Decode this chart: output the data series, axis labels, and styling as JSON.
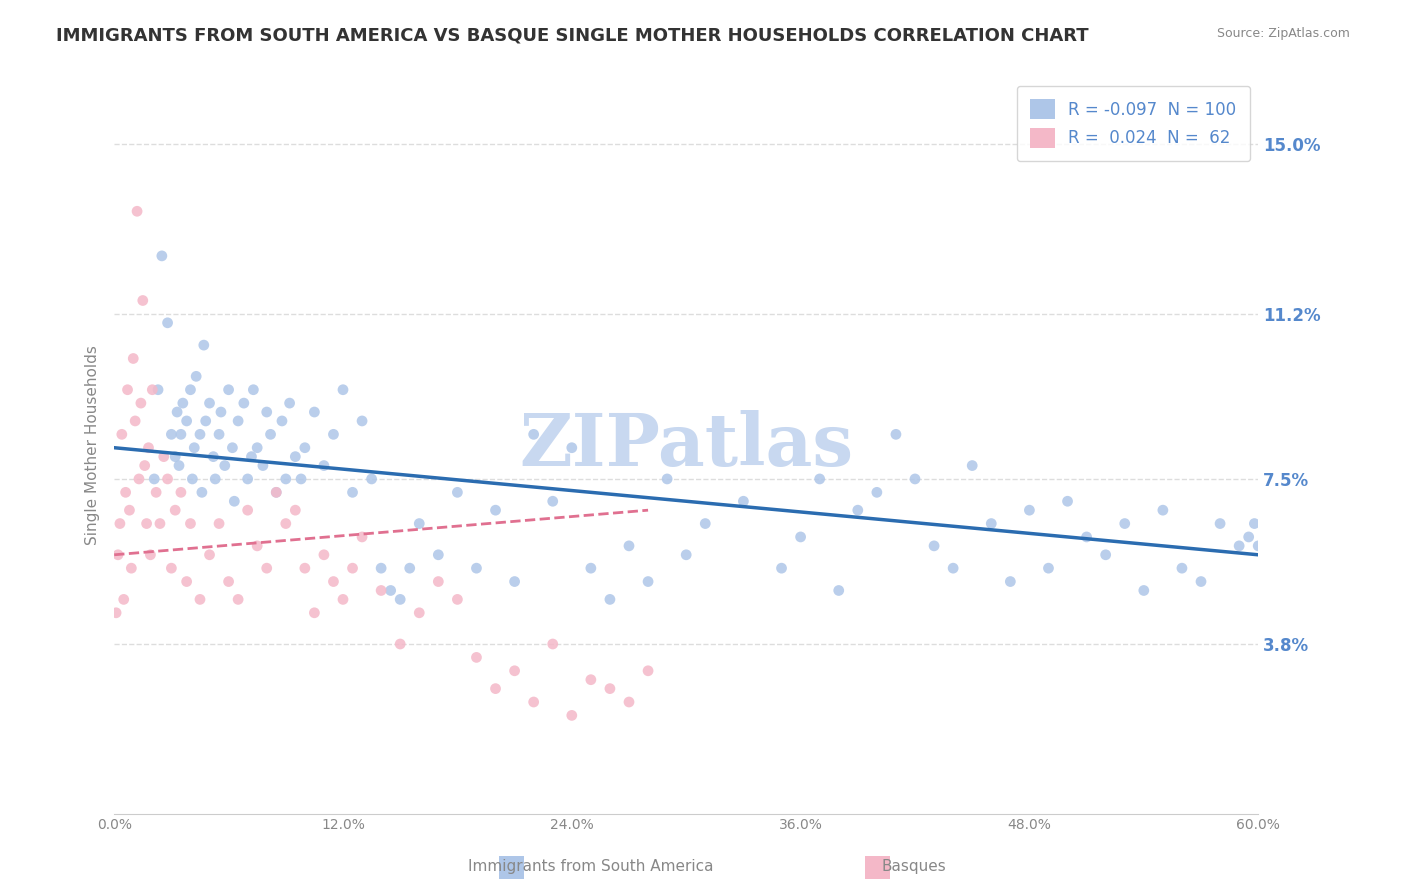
{
  "title": "IMMIGRANTS FROM SOUTH AMERICA VS BASQUE SINGLE MOTHER HOUSEHOLDS CORRELATION CHART",
  "source": "Source: ZipAtlas.com",
  "xlabel": "",
  "ylabel": "Single Mother Households",
  "right_yticks": [
    3.8,
    7.5,
    11.2,
    15.0
  ],
  "right_ytick_labels": [
    "3.8%",
    "7.5%",
    "11.2%",
    "15.0%"
  ],
  "xticks": [
    0.0,
    12.0,
    24.0,
    36.0,
    48.0,
    60.0
  ],
  "xtick_labels": [
    "0.0%",
    "12.0%",
    "24.0%",
    "36.0%",
    "48.0%",
    "60.0%"
  ],
  "xmin": 0.0,
  "xmax": 60.0,
  "ymin": 0.0,
  "ymax": 16.5,
  "legend_entries": [
    {
      "label": "R = -0.097  N = 100",
      "color": "#aec6e8"
    },
    {
      "label": "R =  0.024  N =  62",
      "color": "#f4b8c8"
    }
  ],
  "blue_scatter_color": "#aec6e8",
  "pink_scatter_color": "#f4b8c8",
  "blue_line_color": "#2b6cb0",
  "pink_line_color": "#e07090",
  "watermark": "ZIPatlas",
  "watermark_color": "#c8d8f0",
  "background_color": "#ffffff",
  "grid_color": "#dddddd",
  "title_color": "#333333",
  "axis_label_color": "#5588cc",
  "scatter_size": 60,
  "blue_scatter_x": [
    2.1,
    2.3,
    2.5,
    2.8,
    3.0,
    3.2,
    3.3,
    3.4,
    3.5,
    3.6,
    3.8,
    4.0,
    4.1,
    4.2,
    4.3,
    4.5,
    4.6,
    4.7,
    4.8,
    5.0,
    5.2,
    5.3,
    5.5,
    5.6,
    5.8,
    6.0,
    6.2,
    6.3,
    6.5,
    6.8,
    7.0,
    7.2,
    7.3,
    7.5,
    7.8,
    8.0,
    8.2,
    8.5,
    8.8,
    9.0,
    9.2,
    9.5,
    9.8,
    10.0,
    10.5,
    11.0,
    11.5,
    12.0,
    12.5,
    13.0,
    13.5,
    14.0,
    14.5,
    15.0,
    15.5,
    16.0,
    17.0,
    18.0,
    19.0,
    20.0,
    21.0,
    22.0,
    23.0,
    24.0,
    25.0,
    26.0,
    27.0,
    28.0,
    29.0,
    30.0,
    31.0,
    33.0,
    35.0,
    36.0,
    37.0,
    38.0,
    39.0,
    40.0,
    41.0,
    42.0,
    43.0,
    44.0,
    45.0,
    46.0,
    47.0,
    48.0,
    49.0,
    50.0,
    51.0,
    52.0,
    53.0,
    54.0,
    55.0,
    56.0,
    57.0,
    58.0,
    59.0,
    59.5,
    59.8,
    60.0
  ],
  "blue_scatter_y": [
    7.5,
    9.5,
    12.5,
    11.0,
    8.5,
    8.0,
    9.0,
    7.8,
    8.5,
    9.2,
    8.8,
    9.5,
    7.5,
    8.2,
    9.8,
    8.5,
    7.2,
    10.5,
    8.8,
    9.2,
    8.0,
    7.5,
    8.5,
    9.0,
    7.8,
    9.5,
    8.2,
    7.0,
    8.8,
    9.2,
    7.5,
    8.0,
    9.5,
    8.2,
    7.8,
    9.0,
    8.5,
    7.2,
    8.8,
    7.5,
    9.2,
    8.0,
    7.5,
    8.2,
    9.0,
    7.8,
    8.5,
    9.5,
    7.2,
    8.8,
    7.5,
    5.5,
    5.0,
    4.8,
    5.5,
    6.5,
    5.8,
    7.2,
    5.5,
    6.8,
    5.2,
    8.5,
    7.0,
    8.2,
    5.5,
    4.8,
    6.0,
    5.2,
    7.5,
    5.8,
    6.5,
    7.0,
    5.5,
    6.2,
    7.5,
    5.0,
    6.8,
    7.2,
    8.5,
    7.5,
    6.0,
    5.5,
    7.8,
    6.5,
    5.2,
    6.8,
    5.5,
    7.0,
    6.2,
    5.8,
    6.5,
    5.0,
    6.8,
    5.5,
    5.2,
    6.5,
    6.0,
    6.2,
    6.5,
    6.0
  ],
  "pink_scatter_x": [
    0.1,
    0.2,
    0.3,
    0.4,
    0.5,
    0.6,
    0.7,
    0.8,
    0.9,
    1.0,
    1.1,
    1.2,
    1.3,
    1.4,
    1.5,
    1.6,
    1.7,
    1.8,
    1.9,
    2.0,
    2.2,
    2.4,
    2.6,
    2.8,
    3.0,
    3.2,
    3.5,
    3.8,
    4.0,
    4.5,
    5.0,
    5.5,
    6.0,
    6.5,
    7.0,
    7.5,
    8.0,
    8.5,
    9.0,
    9.5,
    10.0,
    10.5,
    11.0,
    11.5,
    12.0,
    12.5,
    13.0,
    14.0,
    15.0,
    16.0,
    17.0,
    18.0,
    19.0,
    20.0,
    21.0,
    22.0,
    23.0,
    24.0,
    25.0,
    26.0,
    27.0,
    28.0
  ],
  "pink_scatter_y": [
    4.5,
    5.8,
    6.5,
    8.5,
    4.8,
    7.2,
    9.5,
    6.8,
    5.5,
    10.2,
    8.8,
    13.5,
    7.5,
    9.2,
    11.5,
    7.8,
    6.5,
    8.2,
    5.8,
    9.5,
    7.2,
    6.5,
    8.0,
    7.5,
    5.5,
    6.8,
    7.2,
    5.2,
    6.5,
    4.8,
    5.8,
    6.5,
    5.2,
    4.8,
    6.8,
    6.0,
    5.5,
    7.2,
    6.5,
    6.8,
    5.5,
    4.5,
    5.8,
    5.2,
    4.8,
    5.5,
    6.2,
    5.0,
    3.8,
    4.5,
    5.2,
    4.8,
    3.5,
    2.8,
    3.2,
    2.5,
    3.8,
    2.2,
    3.0,
    2.8,
    2.5,
    3.2
  ],
  "blue_trend_x": [
    0.0,
    60.0
  ],
  "blue_trend_y": [
    8.2,
    5.8
  ],
  "pink_trend_x": [
    0.0,
    28.0
  ],
  "pink_trend_y": [
    5.8,
    6.8
  ]
}
